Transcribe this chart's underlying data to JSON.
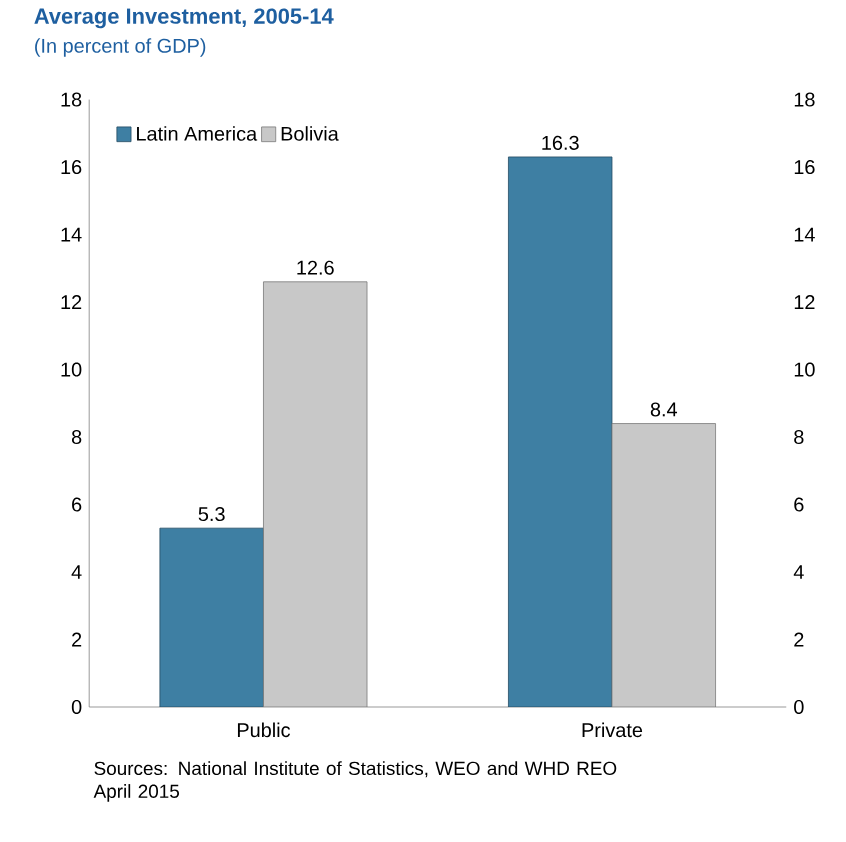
{
  "chart_data": {
    "type": "bar",
    "title": "Average Investment, 2005-14",
    "subtitle": "(In percent of GDP)",
    "categories": [
      "Public",
      "Private"
    ],
    "series": [
      {
        "name": "Latin America",
        "color": "#3e7fa3",
        "values": [
          5.3,
          16.3
        ]
      },
      {
        "name": "Bolivia",
        "color": "#c8c8c8",
        "values": [
          12.6,
          8.4
        ]
      }
    ],
    "data_labels": true,
    "legend": "top left",
    "grid": false,
    "ylim": [
      0,
      18
    ],
    "yticks": [
      0,
      2,
      4,
      6,
      8,
      10,
      12,
      14,
      16,
      18
    ],
    "y2lim": [
      0,
      18
    ],
    "y2ticks": [
      0,
      2,
      4,
      6,
      8,
      10,
      12,
      14,
      16,
      18
    ],
    "annotations": [
      "Sources: National Institute of Statistics, WEO and WHD REO April 2015"
    ]
  }
}
